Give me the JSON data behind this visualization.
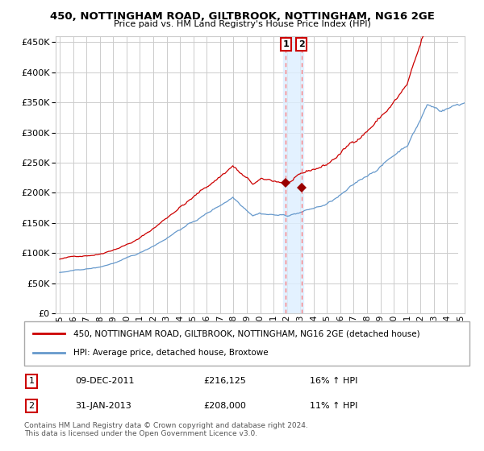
{
  "title1": "450, NOTTINGHAM ROAD, GILTBROOK, NOTTINGHAM, NG16 2GE",
  "title2": "Price paid vs. HM Land Registry's House Price Index (HPI)",
  "legend_label1": "450, NOTTINGHAM ROAD, GILTBROOK, NOTTINGHAM, NG16 2GE (detached house)",
  "legend_label2": "HPI: Average price, detached house, Broxtowe",
  "table_rows": [
    {
      "num": "1",
      "date": "09-DEC-2011",
      "price": "£216,125",
      "hpi": "16% ↑ HPI"
    },
    {
      "num": "2",
      "date": "31-JAN-2013",
      "price": "£208,000",
      "hpi": "11% ↑ HPI"
    }
  ],
  "footnote": "Contains HM Land Registry data © Crown copyright and database right 2024.\nThis data is licensed under the Open Government Licence v3.0.",
  "line1_color": "#cc0000",
  "line2_color": "#6699cc",
  "marker1_color": "#990000",
  "shade_color": "#ddeeff",
  "vline_color": "#ff6666",
  "grid_color": "#cccccc",
  "ylim": [
    0,
    460000
  ],
  "yticks": [
    0,
    50000,
    100000,
    150000,
    200000,
    250000,
    300000,
    350000,
    400000,
    450000
  ],
  "sale1_x": 2011.92,
  "sale1_y": 216125,
  "sale2_x": 2013.08,
  "sale2_y": 208000,
  "shade_x_start": 2011.7,
  "shade_x_end": 2013.2,
  "xmin": 1995.0,
  "xmax": 2025.3
}
